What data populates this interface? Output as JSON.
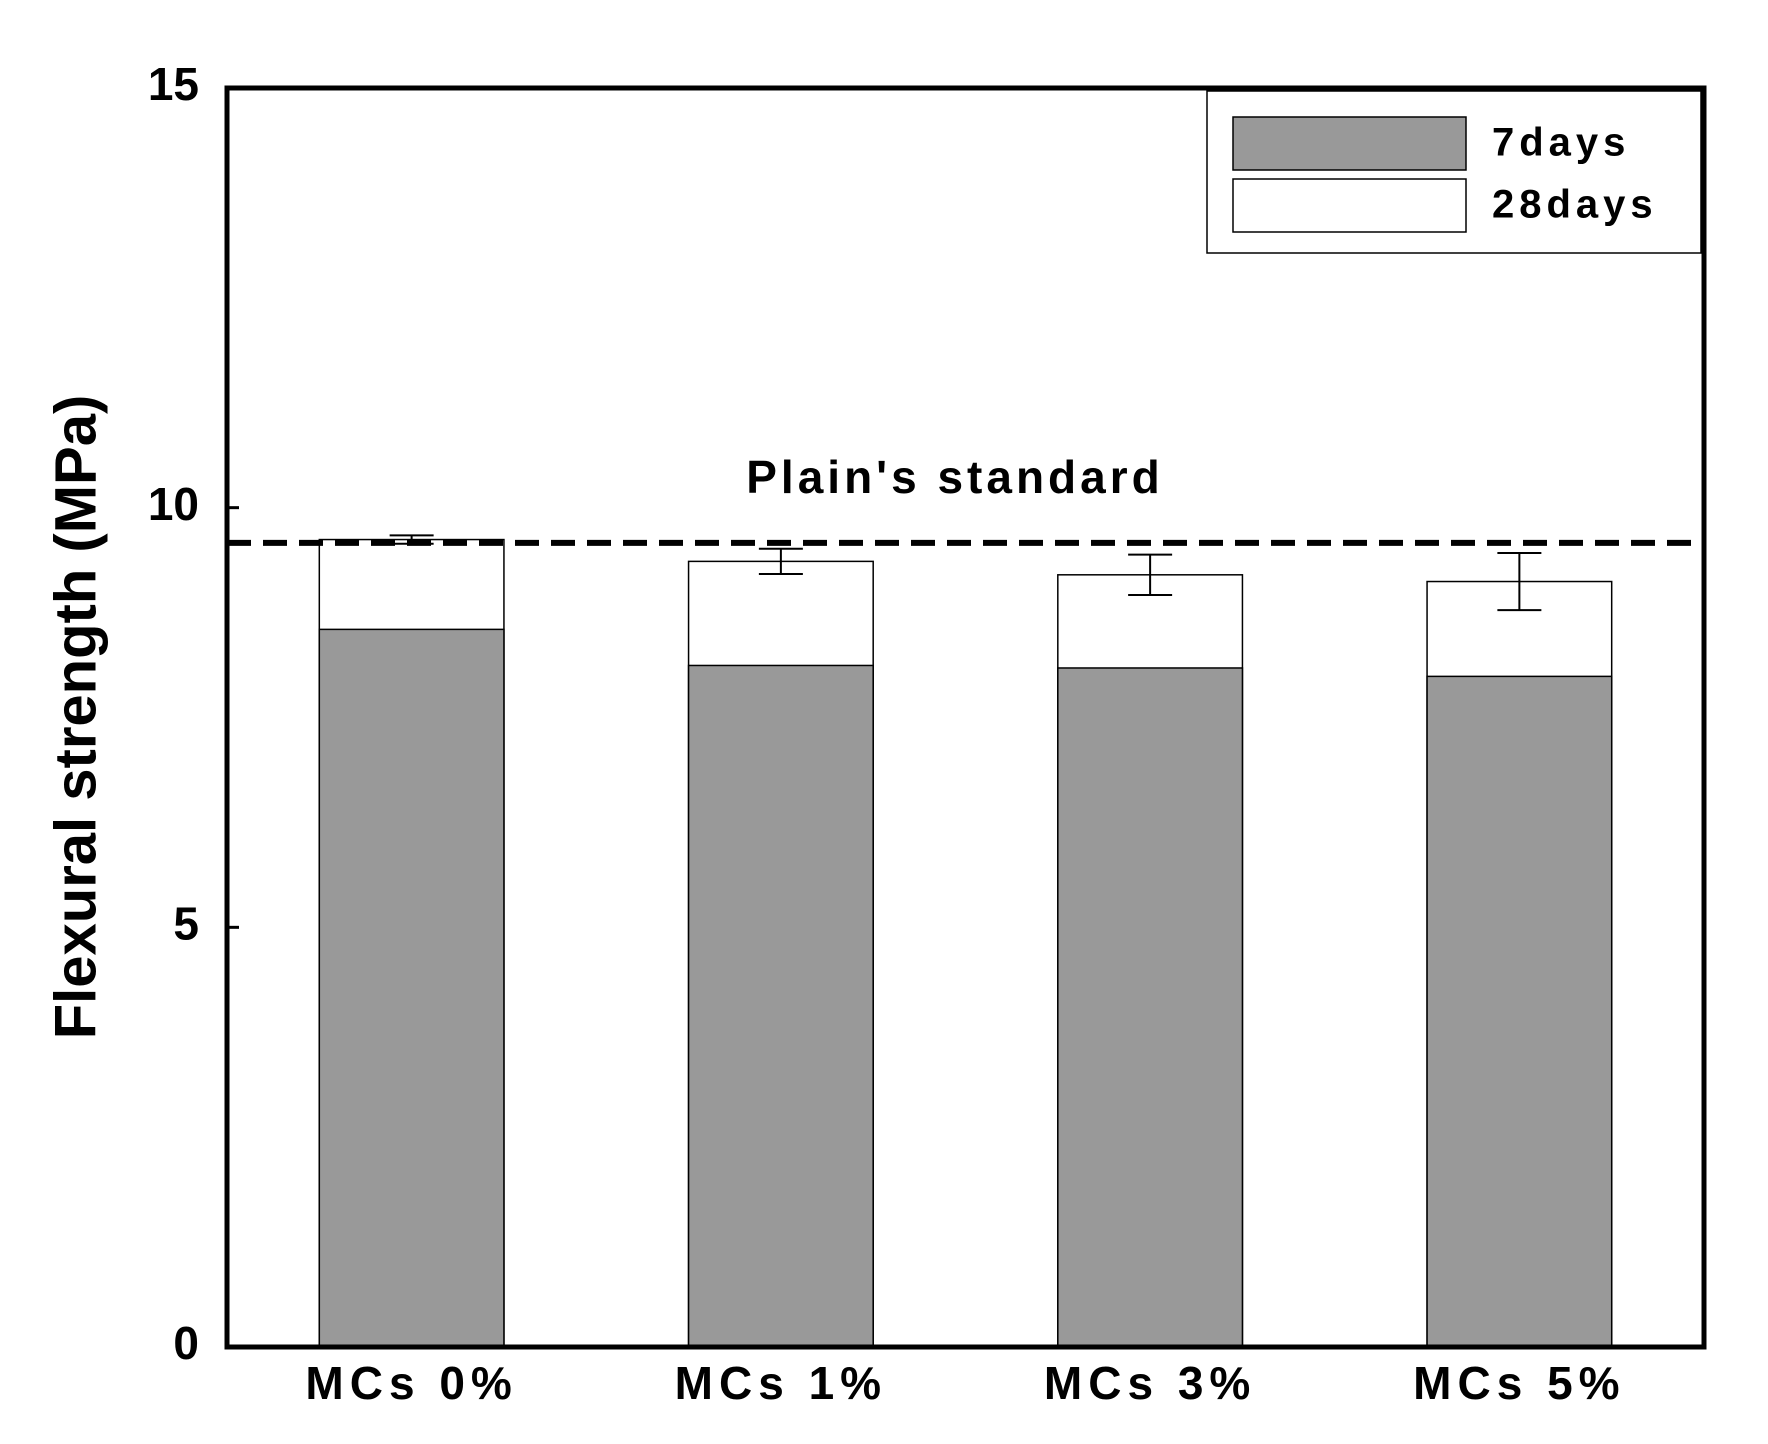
{
  "chart_data": {
    "type": "bar",
    "y_label": "Flexural strength (MPa)",
    "categories": [
      "MCs 0%",
      "MCs 1%",
      "MCs 3%",
      "MCs 5%"
    ],
    "series": [
      {
        "name": "28days",
        "color": "#ffffff",
        "values": [
          9.62,
          9.36,
          9.2,
          9.12
        ],
        "errors": [
          0.05,
          0.15,
          0.24,
          0.34
        ]
      },
      {
        "name": "7days",
        "color": "#999999",
        "values": [
          8.55,
          8.12,
          8.09,
          7.99
        ]
      }
    ],
    "legend_order": [
      1,
      0
    ],
    "reference_line": {
      "value": 9.58,
      "label": "Plain's standard"
    },
    "ylim": [
      0,
      15
    ],
    "yticks": [
      0,
      5,
      10,
      15
    ],
    "legend": "upper right",
    "grid": false
  }
}
